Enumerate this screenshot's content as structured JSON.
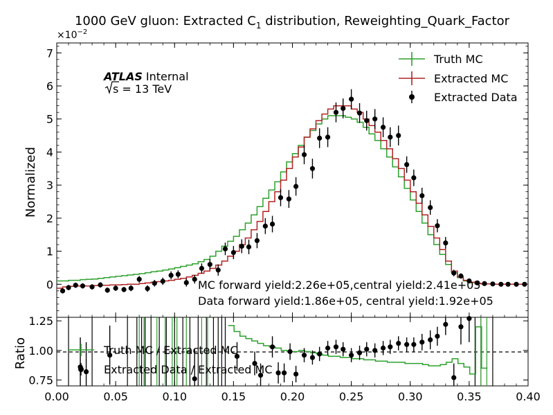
{
  "chart_data": {
    "type": "line",
    "title": "1000 GeV gluon: Extracted C",
    "title_subscript": "1",
    "title_rest": " distribution, Reweighting_Quark_Factor",
    "ylabel": "Normalized",
    "ratio_ylabel": "Ratio",
    "y_offset_text": "×10",
    "y_offset_exp": "−2",
    "atlas_label": "ATLAS",
    "atlas_suffix": "Internal",
    "energy_label": "s = 13 TeV",
    "annotation_mc": "MC forward yield:2.26e+05,central yield:2.41e+05",
    "annotation_data": "Data forward yield:1.86e+05, central yield:1.92e+05",
    "xlim": [
      0.0,
      0.4
    ],
    "ylim": [
      -1.0,
      7.3
    ],
    "ratio_ylim": [
      0.7,
      1.28
    ],
    "x_ticks": [
      "0.00",
      "0.05",
      "0.10",
      "0.15",
      "0.20",
      "0.25",
      "0.30",
      "0.35",
      "0.40"
    ],
    "y_ticks": [
      "0",
      "1",
      "2",
      "3",
      "4",
      "5",
      "6",
      "7"
    ],
    "ratio_ticks": [
      "0.75",
      "1.00",
      "1.25"
    ],
    "legend": {
      "placement": "top-right",
      "entries": [
        "Truth MC",
        "Extracted MC",
        "Extracted Data"
      ]
    },
    "ratio_legend": {
      "placement": "top-left",
      "entries": [
        "Truth MC / Extracted MC",
        "Extracted Data / Extracted MC"
      ]
    },
    "colors": {
      "truth": "#2ca02c",
      "extracted": "#b22222",
      "data": "#000000"
    },
    "bin_edges": [
      0.0,
      0.005,
      0.01,
      0.015,
      0.02,
      0.025,
      0.03,
      0.035,
      0.04,
      0.045,
      0.05,
      0.055,
      0.06,
      0.065,
      0.07,
      0.075,
      0.08,
      0.085,
      0.09,
      0.095,
      0.1,
      0.105,
      0.11,
      0.115,
      0.12,
      0.125,
      0.13,
      0.135,
      0.14,
      0.145,
      0.15,
      0.155,
      0.16,
      0.165,
      0.17,
      0.175,
      0.18,
      0.185,
      0.19,
      0.195,
      0.2,
      0.205,
      0.21,
      0.215,
      0.22,
      0.225,
      0.23,
      0.235,
      0.24,
      0.245,
      0.25,
      0.255,
      0.26,
      0.265,
      0.27,
      0.275,
      0.28,
      0.285,
      0.29,
      0.295,
      0.3,
      0.305,
      0.31,
      0.315,
      0.32,
      0.325,
      0.33,
      0.335,
      0.34,
      0.345,
      0.35,
      0.355,
      0.36,
      0.365,
      0.37,
      0.375,
      0.38,
      0.385,
      0.39,
      0.395,
      0.4
    ],
    "series": [
      {
        "name": "Truth MC",
        "values": [
          0.1,
          0.1,
          0.12,
          0.12,
          0.14,
          0.15,
          0.16,
          0.18,
          0.2,
          0.22,
          0.24,
          0.26,
          0.28,
          0.3,
          0.32,
          0.35,
          0.38,
          0.4,
          0.43,
          0.46,
          0.5,
          0.54,
          0.58,
          0.62,
          0.68,
          0.75,
          0.85,
          1.0,
          1.15,
          1.3,
          1.45,
          1.65,
          1.85,
          2.1,
          2.35,
          2.6,
          2.85,
          3.1,
          3.4,
          3.7,
          3.95,
          4.2,
          4.45,
          4.65,
          4.85,
          5.0,
          5.1,
          5.1,
          5.1,
          5.05,
          5.0,
          4.9,
          4.75,
          4.55,
          4.35,
          4.1,
          3.85,
          3.55,
          3.25,
          2.9,
          2.55,
          2.2,
          1.85,
          1.5,
          1.2,
          0.9,
          0.6,
          0.35,
          0.2,
          0.1,
          0.05,
          0.02,
          0.01,
          0.01,
          0.0,
          0.0,
          0.0,
          0.0,
          0.0,
          0.0
        ]
      },
      {
        "name": "Extracted MC",
        "values": [
          -0.12,
          -0.08,
          -0.06,
          -0.05,
          -0.05,
          -0.05,
          -0.04,
          -0.03,
          -0.03,
          -0.02,
          -0.02,
          -0.01,
          0.0,
          0.0,
          0.02,
          0.04,
          0.06,
          0.08,
          0.1,
          0.12,
          0.15,
          0.18,
          0.22,
          0.27,
          0.33,
          0.4,
          0.48,
          0.58,
          0.7,
          0.85,
          1.0,
          1.2,
          1.4,
          1.65,
          1.9,
          2.2,
          2.5,
          2.8,
          3.15,
          3.5,
          3.85,
          4.15,
          4.45,
          4.7,
          4.95,
          5.15,
          5.3,
          5.4,
          5.4,
          5.4,
          5.3,
          5.2,
          5.0,
          4.8,
          4.6,
          4.35,
          4.1,
          3.8,
          3.5,
          3.15,
          2.8,
          2.45,
          2.1,
          1.75,
          1.4,
          1.05,
          0.7,
          0.4,
          0.22,
          0.12,
          0.06,
          0.03,
          0.01,
          0.01,
          0.0,
          0.0,
          0.0,
          0.0,
          0.0,
          0.0
        ]
      },
      {
        "name": "Extracted Data",
        "values": [
          -0.2,
          -0.1,
          -0.03,
          -0.05,
          -0.08,
          -0.02,
          -0.18,
          -0.12,
          -0.16,
          -0.12,
          0.15,
          -0.13,
          0.03,
          0.09,
          0.27,
          0.3,
          0.05,
          0.15,
          0.48,
          0.6,
          0.43,
          1.07,
          0.96,
          1.15,
          1.13,
          1.32,
          1.76,
          1.82,
          2.62,
          2.58,
          2.96,
          3.92,
          3.5,
          4.42,
          4.45,
          5.2,
          5.32,
          5.6,
          5.18,
          4.95,
          5.0,
          4.75,
          4.45,
          4.5,
          3.62,
          3.22,
          2.68,
          2.32,
          1.77,
          1.25,
          0.34,
          0.25,
          0.1,
          0.04,
          0.02,
          0.01,
          0.0,
          0.0,
          0.0,
          0.0
        ],
        "x": [
          0.005,
          0.01,
          0.016,
          0.022,
          0.03,
          0.037,
          0.043,
          0.05,
          0.057,
          0.063,
          0.07,
          0.077,
          0.083,
          0.09,
          0.097,
          0.103,
          0.11,
          0.117,
          0.123,
          0.13,
          0.137,
          0.143,
          0.15,
          0.157,
          0.163,
          0.17,
          0.177,
          0.183,
          0.19,
          0.197,
          0.203,
          0.21,
          0.217,
          0.223,
          0.23,
          0.237,
          0.243,
          0.25,
          0.257,
          0.263,
          0.27,
          0.277,
          0.283,
          0.29,
          0.297,
          0.303,
          0.31,
          0.317,
          0.323,
          0.33,
          0.337,
          0.343,
          0.35,
          0.357,
          0.363,
          0.37,
          0.377,
          0.383,
          0.39,
          0.397
        ],
        "errors": [
          0.08,
          0.08,
          0.08,
          0.08,
          0.08,
          0.08,
          0.08,
          0.08,
          0.08,
          0.09,
          0.1,
          0.1,
          0.1,
          0.11,
          0.12,
          0.12,
          0.12,
          0.13,
          0.15,
          0.16,
          0.17,
          0.19,
          0.2,
          0.21,
          0.22,
          0.23,
          0.24,
          0.25,
          0.26,
          0.27,
          0.28,
          0.29,
          0.3,
          0.3,
          0.3,
          0.3,
          0.3,
          0.3,
          0.3,
          0.3,
          0.3,
          0.3,
          0.3,
          0.3,
          0.25,
          0.25,
          0.24,
          0.22,
          0.2,
          0.18,
          0.1,
          0.08,
          0.06,
          0.05,
          0.04,
          0.03,
          0.02,
          0.02,
          0.02,
          0.02
        ]
      }
    ],
    "ratio_series": [
      {
        "name": "Truth MC / Extracted MC",
        "x": [
          0.148,
          0.153,
          0.158,
          0.163,
          0.168,
          0.173,
          0.178,
          0.183,
          0.188,
          0.193,
          0.198,
          0.203,
          0.208,
          0.213,
          0.218,
          0.223,
          0.228,
          0.233,
          0.238,
          0.243,
          0.248,
          0.253,
          0.258,
          0.263,
          0.268,
          0.273,
          0.278,
          0.283,
          0.288,
          0.293,
          0.298,
          0.303,
          0.308,
          0.313,
          0.318,
          0.323,
          0.328,
          0.333,
          0.338,
          0.343,
          0.348,
          0.353,
          0.358,
          0.363
        ],
        "values": [
          1.21,
          1.16,
          1.12,
          1.1,
          1.08,
          1.06,
          1.04,
          1.03,
          1.02,
          1.0,
          0.99,
          0.99,
          1.0,
          0.99,
          0.98,
          0.97,
          0.96,
          0.95,
          0.95,
          0.94,
          0.94,
          0.93,
          0.93,
          0.92,
          0.92,
          0.91,
          0.91,
          0.9,
          0.9,
          0.9,
          0.89,
          0.89,
          0.89,
          0.88,
          0.87,
          0.87,
          0.88,
          0.9,
          0.93,
          0.89,
          0.86,
          0.8,
          1.2,
          0.85
        ]
      },
      {
        "name": "Extracted Data / Extracted MC",
        "x": [
          0.02,
          0.025,
          0.045,
          0.117,
          0.153,
          0.168,
          0.173,
          0.183,
          0.188,
          0.193,
          0.198,
          0.203,
          0.21,
          0.217,
          0.223,
          0.23,
          0.237,
          0.243,
          0.25,
          0.257,
          0.263,
          0.27,
          0.277,
          0.283,
          0.29,
          0.297,
          0.303,
          0.31,
          0.317,
          0.323,
          0.33,
          0.337,
          0.343,
          0.35
        ],
        "values": [
          0.86,
          0.82,
          0.96,
          0.76,
          0.95,
          0.89,
          0.79,
          1.03,
          0.81,
          0.81,
          0.99,
          0.8,
          0.96,
          0.94,
          0.97,
          1.02,
          1.03,
          1.01,
          0.96,
          0.98,
          1.01,
          1.0,
          1.02,
          1.03,
          1.06,
          1.05,
          1.05,
          1.07,
          1.09,
          1.12,
          1.22,
          0.77,
          1.2,
          1.27
        ],
        "errors": [
          0.25,
          0.25,
          0.25,
          0.25,
          0.12,
          0.1,
          0.1,
          0.09,
          0.09,
          0.08,
          0.07,
          0.07,
          0.06,
          0.06,
          0.06,
          0.06,
          0.06,
          0.06,
          0.06,
          0.06,
          0.06,
          0.06,
          0.06,
          0.06,
          0.06,
          0.06,
          0.06,
          0.07,
          0.08,
          0.08,
          0.09,
          0.12,
          0.15,
          0.2
        ]
      }
    ]
  }
}
